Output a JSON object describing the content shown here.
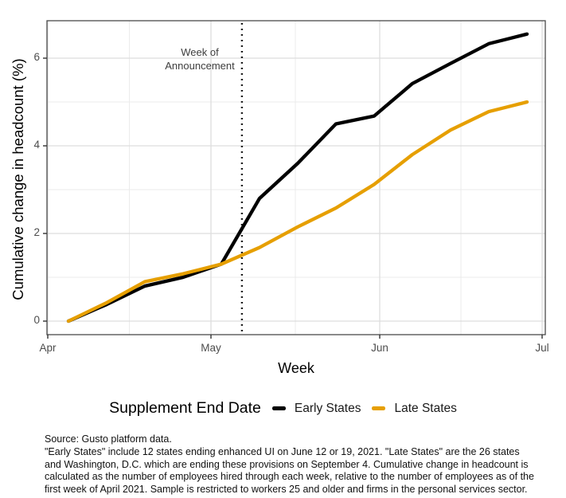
{
  "chart_data": {
    "type": "line",
    "title": "",
    "xlabel": "Week",
    "ylabel": "Cumulative change in headcount (%)",
    "x_tick_labels": [
      "Apr",
      "May",
      "Jun",
      "Jul"
    ],
    "y_ticks": [
      0,
      2,
      4,
      6
    ],
    "y_tick_labels": [
      "0",
      "2",
      "4",
      "6"
    ],
    "ylim": [
      -0.31,
      6.86
    ],
    "x_unit": "weekly points from early April through late June",
    "grid": {
      "shown": true,
      "major_color": "#dddddd",
      "minor_color": "#ebebeb"
    },
    "series": [
      {
        "name": "Early States",
        "color": "#000000",
        "values": [
          0,
          0.38,
          0.8,
          1.0,
          1.3,
          2.8,
          3.6,
          4.5,
          4.68,
          5.42,
          5.88,
          6.33,
          6.55
        ]
      },
      {
        "name": "Late States",
        "color": "#E69F00",
        "values": [
          0,
          0.42,
          0.9,
          1.08,
          1.3,
          1.68,
          2.15,
          2.58,
          3.12,
          3.8,
          4.36,
          4.78,
          5.0
        ]
      }
    ],
    "annotation": {
      "line1": "Week of",
      "line2": "Announcement"
    },
    "announcement_vline": {
      "style": "dotted",
      "color": "#000000",
      "week_position": 4.54
    },
    "legend": {
      "position": "bottom",
      "title": "Supplement End Date",
      "items": [
        {
          "label": "Early States",
          "color": "#000000"
        },
        {
          "label": "Late States",
          "color": "#E69F00"
        }
      ]
    }
  },
  "caption": {
    "lines": [
      "Source: Gusto platform data.",
      "\"Early States\" include 12 states ending enhanced UI on June 12 or 19, 2021. \"Late States\" are the 26 states",
      "and Washington, D.C. which are ending these provisions on September 4. Cumulative change in headcount is",
      "calculated as the number of employees hired through each week, relative to the number of employees as of the",
      "first week of April 2021. Sample is restricted to workers 25 and older and firms in the personal services sector."
    ]
  }
}
